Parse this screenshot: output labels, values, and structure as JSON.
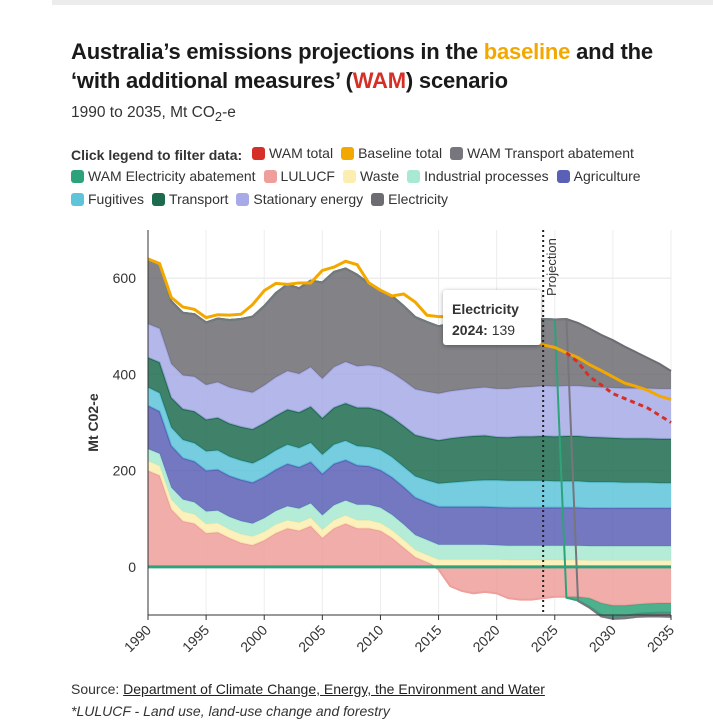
{
  "page": {
    "title_parts": [
      "Australia’s emissions projections in the ",
      "baseline",
      " and the ‘with additional measures’ (",
      "WAM",
      ") scenario"
    ],
    "subtitle": "1990 to 2035, Mt CO",
    "subtitle_sub": "2",
    "subtitle_end": "-e",
    "legend_lead": "Click legend to filter data:",
    "source_label": "Source: ",
    "source_link": "Department of Climate Change, Energy, the Environment and Water",
    "footnote": "*LULUCF - Land use, land-use change and forestry",
    "tooltip": {
      "title": "Electricity",
      "year": "2024:",
      "value": " 139"
    },
    "projection_label": "Projection"
  },
  "legend": [
    {
      "label": "WAM total",
      "color": "#d62f27"
    },
    {
      "label": "Baseline total",
      "color": "#f3a800"
    },
    {
      "label": "WAM Transport abatement",
      "color": "#76767c"
    },
    {
      "label": "WAM Electricity abatement",
      "color": "#2ea37a"
    },
    {
      "label": "LULUCF",
      "color": "#ee9f9b"
    },
    {
      "label": "Waste",
      "color": "#fbeeb0"
    },
    {
      "label": "Industrial processes",
      "color": "#a7e9d1"
    },
    {
      "label": "Agriculture",
      "color": "#5a60b6"
    },
    {
      "label": "Fugitives",
      "color": "#5dc4d9"
    },
    {
      "label": "Transport",
      "color": "#1d6b4f"
    },
    {
      "label": "Stationary energy",
      "color": "#a7aae6"
    },
    {
      "label": "Electricity",
      "color": "#6c6c72"
    }
  ],
  "chart_data": {
    "type": "area",
    "stacked": true,
    "x": [
      1990,
      1991,
      1992,
      1993,
      1994,
      1995,
      1996,
      1997,
      1998,
      1999,
      2000,
      2001,
      2002,
      2003,
      2004,
      2005,
      2006,
      2007,
      2008,
      2009,
      2010,
      2011,
      2012,
      2013,
      2014,
      2015,
      2016,
      2017,
      2018,
      2019,
      2020,
      2021,
      2022,
      2023,
      2024,
      2025,
      2026,
      2027,
      2028,
      2029,
      2030,
      2031,
      2032,
      2033,
      2034,
      2035
    ],
    "xlim": [
      1990,
      2035
    ],
    "ylim": [
      -100,
      700
    ],
    "yticks": [
      0,
      200,
      400,
      600
    ],
    "xticks": [
      1990,
      1995,
      2000,
      2005,
      2010,
      2015,
      2020,
      2025,
      2030,
      2035
    ],
    "ylabel": "Mt C02-e",
    "projection_year": 2024,
    "grid": true,
    "series": [
      {
        "name": "LULUCF",
        "color": "#ee9f9b",
        "values": [
          200,
          190,
          120,
          95,
          90,
          70,
          72,
          60,
          50,
          45,
          55,
          70,
          80,
          75,
          85,
          60,
          80,
          90,
          80,
          80,
          75,
          60,
          40,
          20,
          10,
          -5,
          -40,
          -50,
          -55,
          -52,
          -55,
          -65,
          -68,
          -68,
          -65,
          -62,
          -62,
          -62,
          -65,
          -75,
          -80,
          -80,
          -78,
          -76,
          -75,
          -75
        ]
      },
      {
        "name": "Waste",
        "color": "#fbeeb0",
        "values": [
          20,
          20,
          20,
          20,
          19,
          19,
          19,
          18,
          18,
          18,
          18,
          18,
          17,
          17,
          17,
          17,
          17,
          17,
          17,
          17,
          16,
          16,
          16,
          15,
          15,
          15,
          15,
          15,
          15,
          15,
          15,
          14,
          14,
          14,
          14,
          14,
          14,
          14,
          13,
          13,
          13,
          13,
          13,
          13,
          13,
          13
        ]
      },
      {
        "name": "Industrial processes",
        "color": "#a7e9d1",
        "values": [
          25,
          25,
          25,
          25,
          25,
          26,
          26,
          26,
          27,
          27,
          28,
          28,
          29,
          29,
          30,
          30,
          31,
          31,
          32,
          32,
          32,
          32,
          32,
          31,
          31,
          31,
          31,
          31,
          31,
          31,
          30,
          30,
          30,
          30,
          30,
          30,
          30,
          30,
          30,
          30,
          30,
          30,
          30,
          30,
          30,
          30
        ]
      },
      {
        "name": "Agriculture",
        "color": "#5a60b6",
        "values": [
          90,
          88,
          87,
          86,
          85,
          85,
          85,
          85,
          86,
          85,
          86,
          86,
          88,
          86,
          86,
          86,
          86,
          84,
          82,
          80,
          78,
          78,
          78,
          78,
          78,
          79,
          79,
          79,
          79,
          79,
          79,
          79,
          79,
          79,
          79,
          79,
          79,
          79,
          79,
          79,
          79,
          79,
          79,
          79,
          79,
          79
        ]
      },
      {
        "name": "Fugitives",
        "color": "#5dc4d9",
        "values": [
          38,
          38,
          38,
          38,
          38,
          40,
          40,
          40,
          40,
          40,
          40,
          40,
          40,
          40,
          40,
          40,
          40,
          40,
          40,
          40,
          42,
          42,
          42,
          44,
          46,
          48,
          50,
          52,
          54,
          55,
          56,
          56,
          56,
          56,
          56,
          55,
          55,
          55,
          54,
          54,
          54,
          53,
          53,
          53,
          52,
          52
        ]
      },
      {
        "name": "Transport",
        "color": "#1d6b4f",
        "values": [
          62,
          64,
          62,
          64,
          66,
          66,
          68,
          69,
          70,
          71,
          72,
          72,
          73,
          74,
          75,
          76,
          77,
          78,
          80,
          82,
          82,
          83,
          85,
          86,
          88,
          90,
          92,
          93,
          93,
          93,
          90,
          90,
          92,
          92,
          93,
          93,
          94,
          94,
          94,
          93,
          92,
          92,
          92,
          92,
          92,
          92
        ]
      },
      {
        "name": "Stationary energy",
        "color": "#a7aae6",
        "values": [
          70,
          70,
          70,
          70,
          72,
          72,
          74,
          75,
          76,
          76,
          78,
          80,
          80,
          80,
          82,
          82,
          84,
          86,
          86,
          88,
          90,
          92,
          94,
          95,
          96,
          97,
          98,
          98,
          99,
          100,
          100,
          101,
          102,
          103,
          104,
          104,
          104,
          104,
          104,
          104,
          104,
          104,
          104,
          104,
          104,
          104
        ]
      },
      {
        "name": "Electricity",
        "color": "#6c6c72",
        "values": [
          135,
          135,
          130,
          130,
          130,
          130,
          132,
          140,
          148,
          158,
          165,
          175,
          180,
          178,
          180,
          200,
          198,
          194,
          190,
          170,
          160,
          160,
          155,
          150,
          145,
          140,
          140,
          135,
          137,
          137,
          137,
          137,
          137,
          139,
          139,
          139,
          139,
          131,
          121,
          109,
          99,
          87,
          75,
          63,
          52,
          37
        ]
      },
      {
        "name": "WAM Electricity abatement",
        "color": "#2ea37a",
        "values": [
          0,
          0,
          0,
          0,
          0,
          0,
          0,
          0,
          0,
          0,
          0,
          0,
          0,
          0,
          0,
          0,
          0,
          0,
          0,
          0,
          0,
          0,
          0,
          0,
          0,
          0,
          0,
          0,
          0,
          0,
          0,
          0,
          0,
          0,
          0,
          0,
          -2,
          -8,
          -18,
          -25,
          -24,
          -22,
          -20,
          -20,
          -20,
          -20
        ]
      },
      {
        "name": "WAM Transport abatement",
        "color": "#76767c",
        "values": [
          0,
          0,
          0,
          0,
          0,
          0,
          0,
          0,
          0,
          0,
          0,
          0,
          0,
          0,
          0,
          0,
          0,
          0,
          0,
          0,
          0,
          0,
          0,
          0,
          0,
          0,
          0,
          0,
          0,
          0,
          0,
          0,
          0,
          0,
          0,
          0,
          0,
          -1,
          -2,
          -3,
          -4,
          -5,
          -6,
          -7,
          -8,
          -9
        ]
      }
    ],
    "lines": [
      {
        "name": "Baseline total",
        "color": "#f3a800",
        "values": [
          640,
          630,
          560,
          540,
          535,
          518,
          524,
          523,
          525,
          545,
          574,
          589,
          587,
          590,
          590,
          616,
          623,
          635,
          628,
          590,
          575,
          563,
          567,
          550,
          523,
          520,
          520,
          510,
          507,
          509,
          500,
          491,
          481,
          476,
          461,
          456,
          445,
          435,
          420,
          408,
          395,
          382,
          375,
          367,
          355,
          348
        ]
      },
      {
        "name": "WAM total",
        "color": "#d62f27",
        "style": "dashed",
        "values": [
          null,
          null,
          null,
          null,
          null,
          null,
          null,
          null,
          null,
          null,
          null,
          null,
          null,
          null,
          null,
          null,
          null,
          null,
          null,
          null,
          null,
          null,
          null,
          null,
          null,
          null,
          null,
          null,
          null,
          null,
          null,
          null,
          null,
          null,
          null,
          null,
          445,
          425,
          395,
          378,
          360,
          350,
          340,
          330,
          315,
          300
        ]
      }
    ]
  }
}
